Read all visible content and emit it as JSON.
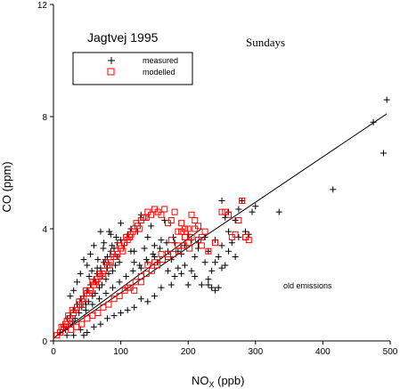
{
  "chart_data": {
    "type": "scatter",
    "title": "Jagtvej 1995",
    "subtitle": "Sundays",
    "xlabel": "NO",
    "xlabel_sub": "X",
    "xlabel_unit": " (ppb)",
    "ylabel": "CO (ppm)",
    "xlim": [
      0,
      500
    ],
    "ylim": [
      0,
      12
    ],
    "x_ticks": [
      0,
      100,
      200,
      300,
      400,
      500
    ],
    "y_ticks": [
      0,
      4,
      8,
      12
    ],
    "x_tick_labels": [
      "0",
      "100",
      "200",
      "300",
      "400",
      "500"
    ],
    "y_tick_labels": [
      "0",
      "4",
      "8",
      "12"
    ],
    "annotation": "old emissions",
    "legend_position": "top-left",
    "series": [
      {
        "name": "measured",
        "marker": "plus",
        "color": "#000000",
        "points": [
          [
            10,
            0.3
          ],
          [
            15,
            0.5
          ],
          [
            18,
            0.4
          ],
          [
            20,
            0.8
          ],
          [
            22,
            0.6
          ],
          [
            25,
            0.9
          ],
          [
            28,
            0.7
          ],
          [
            30,
            1.1
          ],
          [
            32,
            0.8
          ],
          [
            35,
            1.3
          ],
          [
            38,
            1.0
          ],
          [
            40,
            1.5
          ],
          [
            42,
            1.2
          ],
          [
            45,
            1.6
          ],
          [
            48,
            1.3
          ],
          [
            50,
            1.8
          ],
          [
            52,
            1.4
          ],
          [
            55,
            2.0
          ],
          [
            58,
            1.6
          ],
          [
            60,
            2.2
          ],
          [
            62,
            1.7
          ],
          [
            65,
            2.4
          ],
          [
            68,
            1.9
          ],
          [
            70,
            2.6
          ],
          [
            72,
            2.0
          ],
          [
            75,
            2.8
          ],
          [
            78,
            2.2
          ],
          [
            80,
            3.0
          ],
          [
            82,
            2.4
          ],
          [
            85,
            3.2
          ],
          [
            88,
            2.5
          ],
          [
            90,
            3.3
          ],
          [
            92,
            2.7
          ],
          [
            95,
            3.5
          ],
          [
            98,
            2.8
          ],
          [
            100,
            3.6
          ],
          [
            40,
            2.4
          ],
          [
            45,
            2.9
          ],
          [
            50,
            2.7
          ],
          [
            55,
            3.1
          ],
          [
            60,
            3.4
          ],
          [
            65,
            2.6
          ],
          [
            70,
            3.9
          ],
          [
            75,
            3.5
          ],
          [
            80,
            2.6
          ],
          [
            85,
            3.8
          ],
          [
            35,
            2.1
          ],
          [
            30,
            1.8
          ],
          [
            25,
            1.6
          ],
          [
            100,
            4.2
          ],
          [
            110,
            3.8
          ],
          [
            115,
            4.0
          ],
          [
            120,
            3.2
          ],
          [
            125,
            3.9
          ],
          [
            130,
            4.5
          ],
          [
            135,
            3.3
          ],
          [
            140,
            3.7
          ],
          [
            145,
            4.1
          ],
          [
            150,
            3.4
          ],
          [
            155,
            2.8
          ],
          [
            160,
            3.6
          ],
          [
            165,
            4.3
          ],
          [
            170,
            3.2
          ],
          [
            175,
            2.9
          ],
          [
            180,
            3.5
          ],
          [
            185,
            2.6
          ],
          [
            190,
            3.1
          ],
          [
            195,
            2.7
          ],
          [
            200,
            3.8
          ],
          [
            205,
            2.5
          ],
          [
            210,
            3.0
          ],
          [
            215,
            3.3
          ],
          [
            220,
            2.0
          ],
          [
            225,
            2.8
          ],
          [
            230,
            3.2
          ],
          [
            235,
            2.5
          ],
          [
            240,
            3.6
          ],
          [
            245,
            3.0
          ],
          [
            250,
            3.4
          ],
          [
            255,
            2.7
          ],
          [
            260,
            3.9
          ],
          [
            265,
            3.5
          ],
          [
            270,
            4.3
          ],
          [
            275,
            4.7
          ],
          [
            280,
            5.0
          ],
          [
            285,
            3.9
          ],
          [
            290,
            3.8
          ],
          [
            295,
            4.6
          ],
          [
            240,
            2.8
          ],
          [
            230,
            2.0
          ],
          [
            260,
            3.2
          ],
          [
            270,
            3.0
          ],
          [
            275,
            3.7
          ],
          [
            300,
            4.8
          ],
          [
            210,
            2.3
          ],
          [
            200,
            2.0
          ],
          [
            190,
            2.4
          ],
          [
            180,
            2.3
          ],
          [
            175,
            2.0
          ],
          [
            150,
            1.6
          ],
          [
            140,
            1.4
          ],
          [
            130,
            1.5
          ],
          [
            120,
            1.2
          ],
          [
            110,
            1.1
          ],
          [
            100,
            1.0
          ],
          [
            90,
            0.9
          ],
          [
            80,
            0.8
          ],
          [
            70,
            0.6
          ],
          [
            60,
            0.5
          ],
          [
            50,
            0.3
          ],
          [
            45,
            0.2
          ],
          [
            40,
            0.4
          ],
          [
            30,
            0.2
          ],
          [
            20,
            0.2
          ],
          [
            160,
            1.9
          ],
          [
            170,
            2.5
          ],
          [
            120,
            2.8
          ],
          [
            130,
            2.6
          ],
          [
            140,
            2.8
          ],
          [
            150,
            3.0
          ],
          [
            95,
            3.0
          ],
          [
            105,
            3.4
          ],
          [
            115,
            3.2
          ],
          [
            230,
            2.2
          ],
          [
            235,
            1.9
          ],
          [
            240,
            1.8
          ],
          [
            245,
            1.9
          ],
          [
            250,
            2.6
          ],
          [
            250,
            5.0
          ],
          [
            255,
            4.4
          ],
          [
            260,
            4.6
          ],
          [
            225,
            3.7
          ],
          [
            215,
            3.5
          ],
          [
            205,
            3.6
          ],
          [
            195,
            3.4
          ],
          [
            185,
            3.2
          ],
          [
            178,
            3.7
          ],
          [
            168,
            3.5
          ],
          [
            158,
            3.3
          ],
          [
            148,
            3.1
          ],
          [
            138,
            2.9
          ],
          [
            128,
            2.7
          ],
          [
            118,
            2.5
          ],
          [
            108,
            2.3
          ],
          [
            98,
            2.1
          ],
          [
            88,
            1.9
          ],
          [
            78,
            1.7
          ],
          [
            68,
            1.5
          ],
          [
            58,
            1.3
          ],
          [
            48,
            1.1
          ],
          [
            83,
            3.9
          ],
          [
            87,
            3.4
          ],
          [
            93,
            3.7
          ],
          [
            72,
            2.3
          ],
          [
            66,
            2.9
          ],
          [
            74,
            3.3
          ],
          [
            77,
            2.9
          ],
          [
            63,
            2.1
          ],
          [
            57,
            2.5
          ],
          [
            53,
            2.3
          ],
          [
            335,
            4.6
          ],
          [
            415,
            5.4
          ],
          [
            475,
            7.8
          ],
          [
            490,
            6.7
          ],
          [
            495,
            8.6
          ]
        ]
      },
      {
        "name": "modelled",
        "marker": "square",
        "color": "#ff0000",
        "points": [
          [
            5,
            0.2
          ],
          [
            10,
            0.3
          ],
          [
            15,
            0.5
          ],
          [
            20,
            0.7
          ],
          [
            25,
            0.8
          ],
          [
            30,
            1.0
          ],
          [
            35,
            1.2
          ],
          [
            40,
            1.3
          ],
          [
            45,
            1.5
          ],
          [
            50,
            1.7
          ],
          [
            55,
            1.8
          ],
          [
            60,
            2.0
          ],
          [
            65,
            2.2
          ],
          [
            70,
            2.3
          ],
          [
            75,
            2.5
          ],
          [
            80,
            2.7
          ],
          [
            85,
            2.8
          ],
          [
            90,
            3.0
          ],
          [
            95,
            3.1
          ],
          [
            100,
            3.3
          ],
          [
            105,
            3.5
          ],
          [
            110,
            3.6
          ],
          [
            115,
            3.8
          ],
          [
            120,
            4.0
          ],
          [
            125,
            4.1
          ],
          [
            130,
            4.3
          ],
          [
            135,
            4.4
          ],
          [
            140,
            4.6
          ],
          [
            12,
            0.5
          ],
          [
            18,
            0.6
          ],
          [
            22,
            0.9
          ],
          [
            28,
            1.1
          ],
          [
            33,
            1.1
          ],
          [
            38,
            1.4
          ],
          [
            43,
            1.4
          ],
          [
            48,
            1.8
          ],
          [
            53,
            1.7
          ],
          [
            58,
            2.1
          ],
          [
            63,
            2.1
          ],
          [
            68,
            2.4
          ],
          [
            73,
            2.4
          ],
          [
            78,
            2.8
          ],
          [
            83,
            2.7
          ],
          [
            88,
            3.1
          ],
          [
            93,
            3.0
          ],
          [
            98,
            3.4
          ],
          [
            103,
            3.2
          ],
          [
            108,
            3.7
          ],
          [
            113,
            3.7
          ],
          [
            118,
            3.9
          ],
          [
            123,
            4.2
          ],
          [
            128,
            4.0
          ],
          [
            133,
            4.4
          ],
          [
            138,
            4.4
          ],
          [
            145,
            4.5
          ],
          [
            150,
            4.7
          ],
          [
            155,
            4.6
          ],
          [
            160,
            4.5
          ],
          [
            165,
            4.7
          ],
          [
            170,
            4.2
          ],
          [
            175,
            4.3
          ],
          [
            180,
            4.6
          ],
          [
            185,
            3.9
          ],
          [
            190,
            4.2
          ],
          [
            195,
            4.0
          ],
          [
            200,
            3.5
          ],
          [
            205,
            3.7
          ],
          [
            210,
            4.0
          ],
          [
            215,
            3.6
          ],
          [
            220,
            3.7
          ],
          [
            225,
            3.9
          ],
          [
            200,
            4.0
          ],
          [
            202,
            3.3
          ],
          [
            194,
            3.4
          ],
          [
            186,
            3.2
          ],
          [
            178,
            3.1
          ],
          [
            170,
            3.0
          ],
          [
            162,
            2.9
          ],
          [
            154,
            2.7
          ],
          [
            146,
            2.5
          ],
          [
            138,
            2.4
          ],
          [
            130,
            2.3
          ],
          [
            122,
            2.1
          ],
          [
            114,
            1.9
          ],
          [
            106,
            1.8
          ],
          [
            98,
            1.6
          ],
          [
            90,
            1.5
          ],
          [
            82,
            1.3
          ],
          [
            74,
            1.2
          ],
          [
            66,
            1.0
          ],
          [
            58,
            0.9
          ],
          [
            50,
            0.8
          ],
          [
            42,
            0.6
          ],
          [
            34,
            0.5
          ],
          [
            26,
            0.4
          ],
          [
            205,
            4.5
          ],
          [
            210,
            4.3
          ],
          [
            220,
            3.4
          ],
          [
            230,
            3.2
          ],
          [
            240,
            3.5
          ],
          [
            250,
            4.6
          ],
          [
            255,
            4.6
          ],
          [
            260,
            4.5
          ],
          [
            265,
            3.7
          ],
          [
            270,
            3.8
          ],
          [
            275,
            4.3
          ],
          [
            280,
            5.0
          ],
          [
            285,
            3.7
          ],
          [
            290,
            3.6
          ],
          [
            175,
            3.6
          ],
          [
            185,
            3.4
          ],
          [
            195,
            3.7
          ],
          [
            170,
            3.1
          ],
          [
            150,
            2.8
          ],
          [
            130,
            2.1
          ],
          [
            120,
            1.8
          ],
          [
            110,
            1.9
          ],
          [
            140,
            2.7
          ],
          [
            160,
            3.1
          ],
          [
            190,
            3.9
          ],
          [
            215,
            4.1
          ]
        ]
      }
    ],
    "fit_lines": [
      {
        "x0": 0,
        "y0": 0.1,
        "x1": 495,
        "y1": 8.1
      },
      {
        "x0": 5,
        "y0": 0.2,
        "x1": 220,
        "y1": 4.0
      }
    ]
  }
}
